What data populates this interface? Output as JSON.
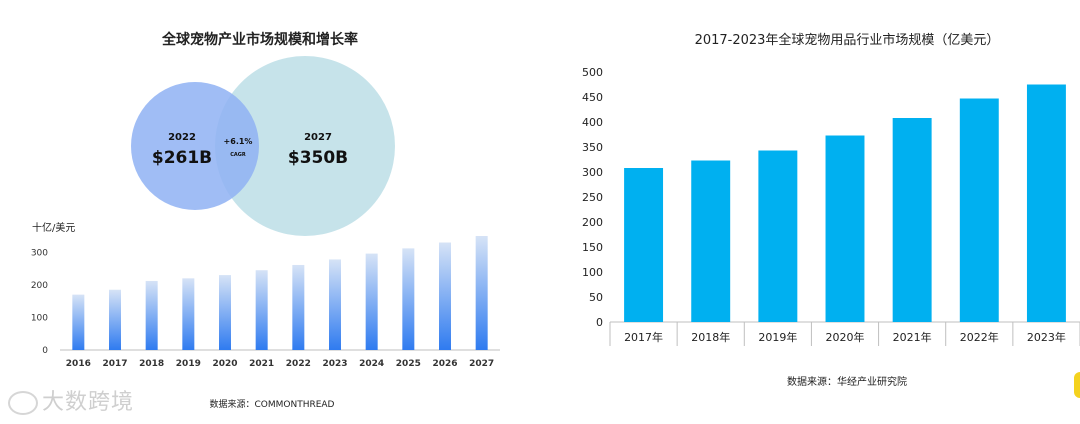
{
  "left": {
    "title": "全球宠物产业市场规模和增长率",
    "venn": {
      "left": {
        "year": "2022",
        "value": "$261B"
      },
      "right": {
        "year": "2027",
        "value": "$350B"
      },
      "overlap": {
        "value": "+6.1%",
        "label": "CAGR"
      }
    },
    "unit_label": "十亿/美元",
    "source": "数据来源：COMMONTHREAD"
  },
  "right": {
    "source": "数据来源：华经产业研究院"
  },
  "watermark": "大数跨境",
  "colors": {
    "left_bar_top": "#d6e3f6",
    "left_bar_bottom": "#2f7bf0",
    "right_bar": "#00b0f0",
    "circle_left": "#8fb2f3",
    "circle_right": "#c6e3ea"
  },
  "chart_data": [
    {
      "type": "bar",
      "categories": [
        "2016",
        "2017",
        "2018",
        "2019",
        "2020",
        "2021",
        "2022",
        "2023",
        "2024",
        "2025",
        "2026",
        "2027"
      ],
      "values": [
        170,
        185,
        212,
        220,
        230,
        245,
        261,
        278,
        296,
        312,
        330,
        350
      ],
      "title": "",
      "xlabel": "",
      "ylabel": "十亿/美元",
      "ylim": [
        0,
        350
      ],
      "yticks": [
        0,
        100,
        200,
        300
      ],
      "grid": false
    },
    {
      "type": "bar",
      "categories": [
        "2017年",
        "2018年",
        "2019年",
        "2020年",
        "2021年",
        "2022年",
        "2023年"
      ],
      "values": [
        308,
        323,
        343,
        373,
        408,
        447,
        475
      ],
      "title": "2017-2023年全球宠物用品行业市场规模（亿美元）",
      "xlabel": "",
      "ylabel": "",
      "ylim": [
        0,
        500
      ],
      "yticks": [
        0,
        50,
        100,
        150,
        200,
        250,
        300,
        350,
        400,
        450,
        500
      ],
      "grid": false
    }
  ]
}
